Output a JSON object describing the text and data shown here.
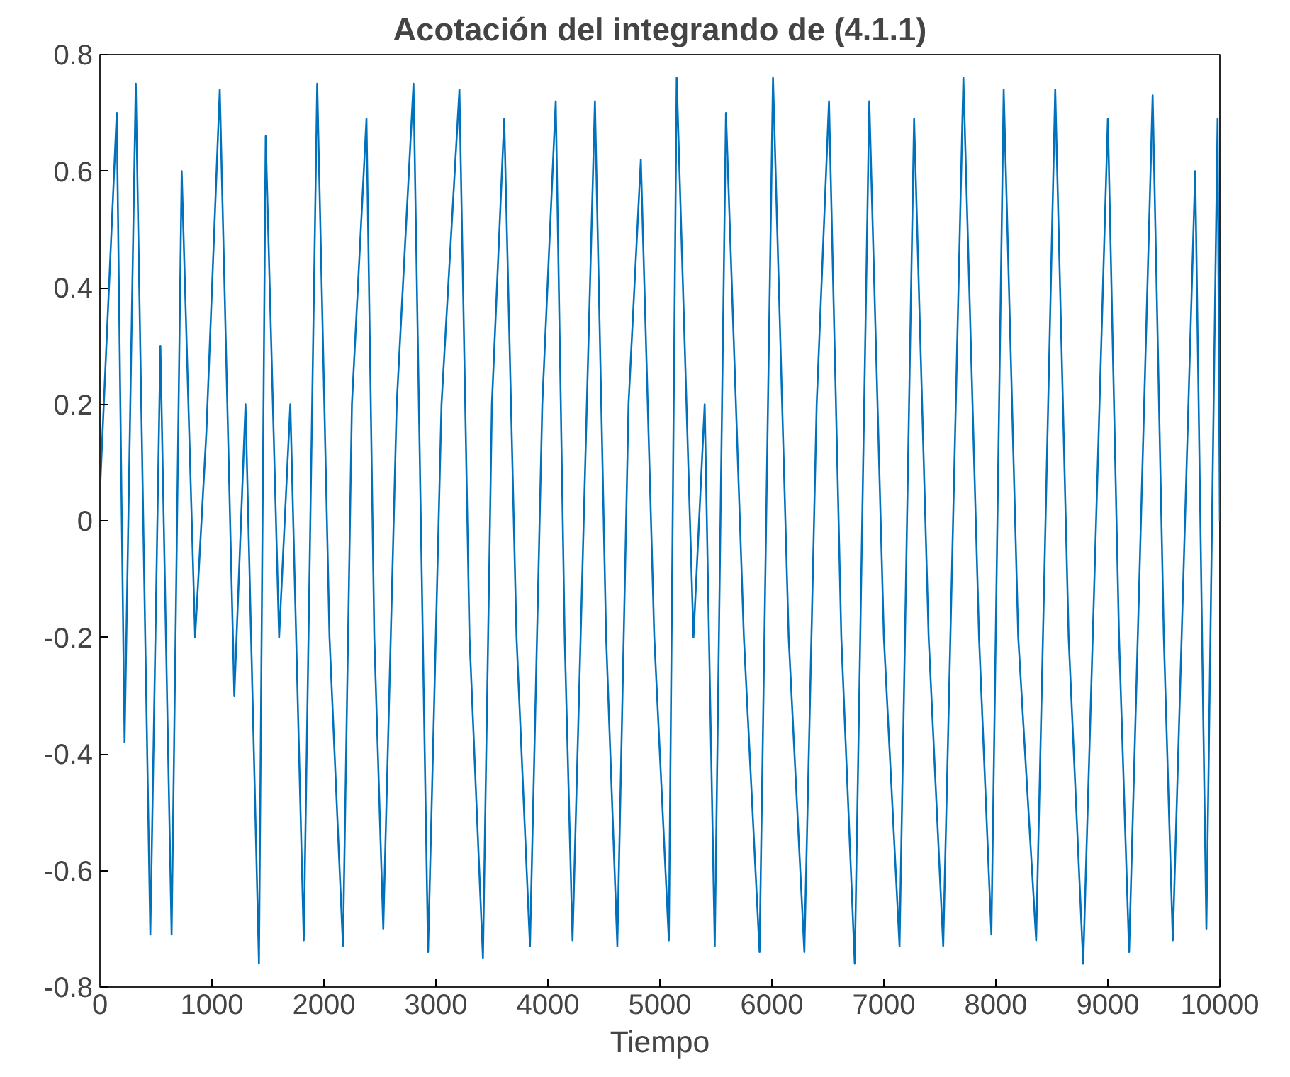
{
  "chart_data": {
    "type": "line",
    "title": "Acotación del integrando de (4.1.1)",
    "xlabel": "Tiempo",
    "x": [
      0,
      150,
      220,
      320,
      450,
      540,
      640,
      730,
      850,
      950,
      1070,
      1200,
      1300,
      1420,
      1480,
      1600,
      1700,
      1820,
      1940,
      2050,
      2170,
      2250,
      2380,
      2450,
      2530,
      2650,
      2800,
      2930,
      3050,
      3210,
      3300,
      3420,
      3500,
      3610,
      3720,
      3840,
      3950,
      4070,
      4150,
      4220,
      4420,
      4520,
      4620,
      4720,
      4830,
      4950,
      5080,
      5150,
      5300,
      5400,
      5490,
      5590,
      5750,
      5890,
      6010,
      6150,
      6290,
      6400,
      6510,
      6620,
      6740,
      6870,
      7000,
      7140,
      7270,
      7400,
      7530,
      7710,
      7850,
      7960,
      8070,
      8200,
      8360,
      8530,
      8650,
      8780,
      9000,
      9100,
      9190,
      9400,
      9500,
      9580,
      9780,
      9880,
      9980,
      10000
    ],
    "series": [
      {
        "color": "#0072bd",
        "values": [
          0.05,
          0.7,
          -0.38,
          0.75,
          -0.71,
          0.3,
          -0.71,
          0.6,
          -0.2,
          0.15,
          0.74,
          -0.3,
          0.2,
          -0.76,
          0.66,
          -0.2,
          0.2,
          -0.72,
          0.75,
          -0.2,
          -0.73,
          0.2,
          0.69,
          -0.2,
          -0.7,
          0.2,
          0.75,
          -0.74,
          0.2,
          0.74,
          -0.2,
          -0.75,
          0.2,
          0.69,
          -0.2,
          -0.73,
          0.2,
          0.72,
          -0.2,
          -0.72,
          0.72,
          -0.2,
          -0.73,
          0.2,
          0.62,
          -0.2,
          -0.72,
          0.76,
          -0.2,
          0.2,
          -0.73,
          0.7,
          -0.2,
          -0.74,
          0.76,
          -0.2,
          -0.74,
          0.2,
          0.72,
          -0.2,
          -0.76,
          0.72,
          -0.2,
          -0.73,
          0.69,
          -0.2,
          -0.73,
          0.76,
          -0.2,
          -0.71,
          0.74,
          -0.2,
          -0.72,
          0.74,
          -0.2,
          -0.76,
          0.69,
          -0.2,
          -0.74,
          0.73,
          -0.2,
          -0.72,
          0.6,
          -0.7,
          0.69,
          0.0
        ]
      }
    ],
    "xlim": [
      0,
      10000
    ],
    "xticks": [
      0,
      1000,
      2000,
      3000,
      4000,
      5000,
      6000,
      7000,
      8000,
      9000,
      10000
    ],
    "ylim": [
      -0.8,
      0.8
    ],
    "yticks": [
      -0.8,
      -0.6,
      -0.4,
      -0.2,
      0,
      0.2,
      0.4,
      0.6,
      0.8
    ],
    "grid": false
  }
}
